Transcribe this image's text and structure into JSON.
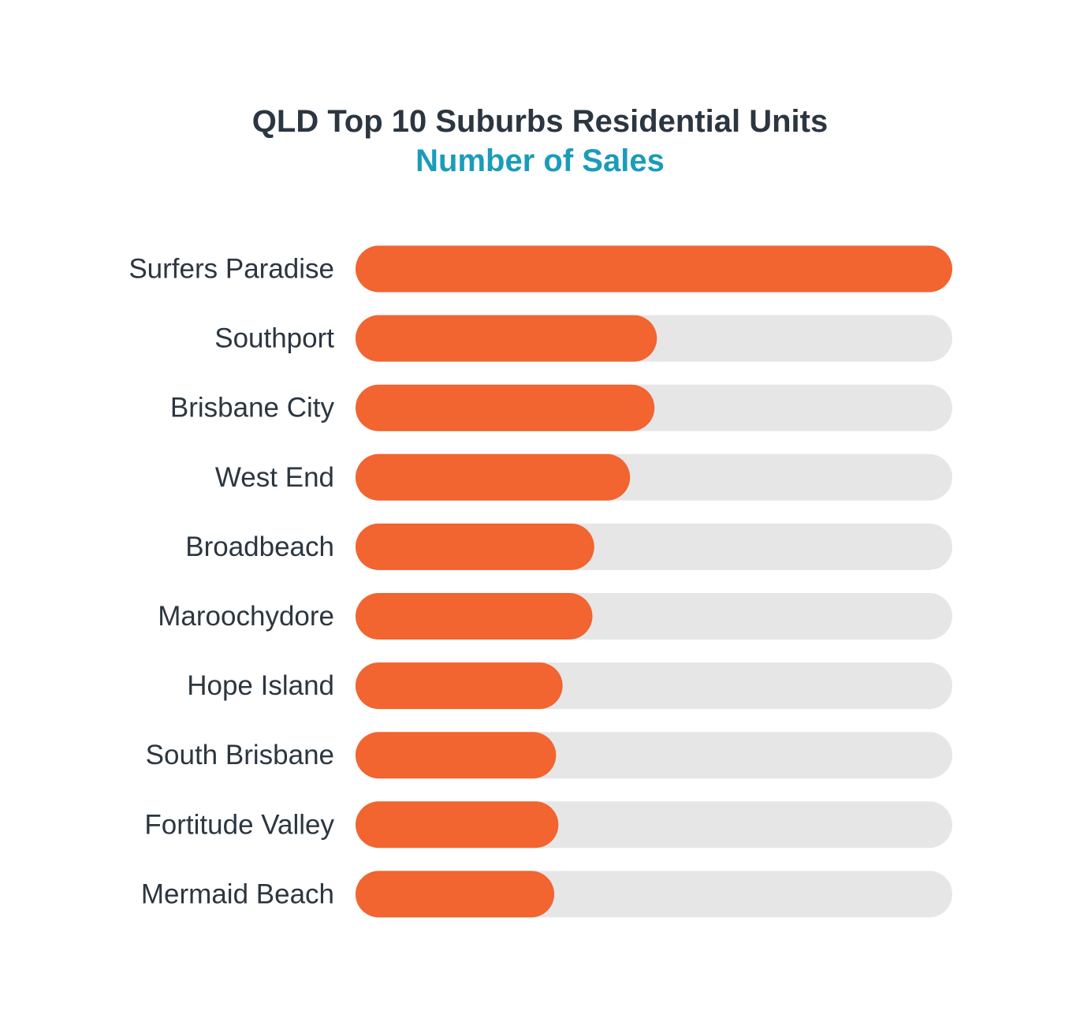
{
  "chart_data": {
    "type": "bar",
    "orientation": "horizontal",
    "title": "QLD Top 10 Suburbs Residential Units",
    "subtitle": "Number of Sales",
    "categories": [
      "Surfers Paradise",
      "Southport",
      "Brisbane City",
      "West End",
      "Broadbeach",
      "Maroochydore",
      "Hope Island",
      "South Brisbane",
      "Fortitude Valley",
      "Mermaid Beach"
    ],
    "values": [
      100,
      50.5,
      50.1,
      46,
      40,
      39.7,
      34.7,
      33.6,
      34,
      33.3
    ],
    "xlim": [
      0,
      100
    ],
    "grid": false,
    "legend": "none",
    "colors": {
      "bar": "#f26430",
      "track": "#e6e6e6",
      "title": "#2c3640",
      "subtitle": "#1a9cbb",
      "label": "#2c3640"
    }
  }
}
